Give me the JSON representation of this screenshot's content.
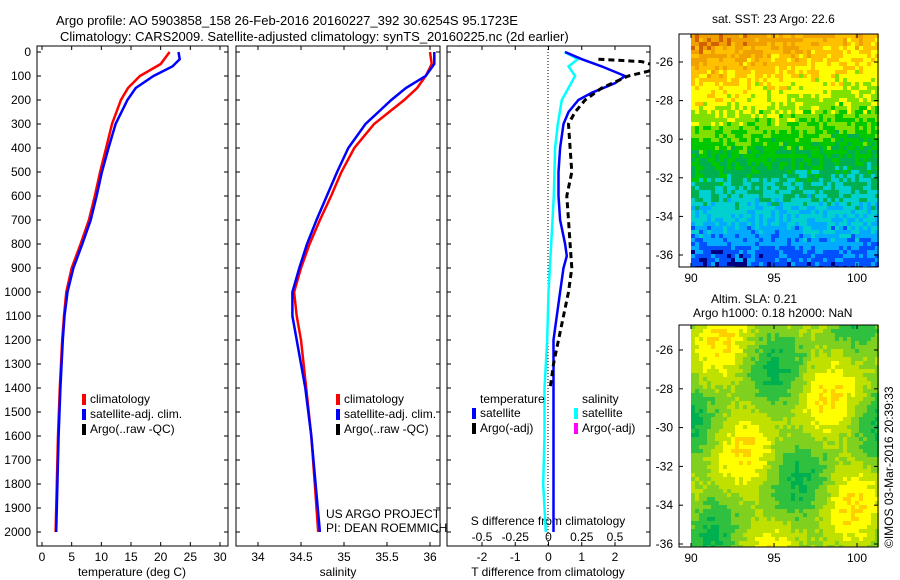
{
  "title_line1": "Argo profile: AO 5903858_158 26-Feb-2016 20160227_392 30.6254S 95.1723E",
  "title_line2": "Climatology: CARS2009. Satellite-adjusted climatology: synTS_20160225.nc (2d earlier)",
  "colors": {
    "climatology": "#ff0000",
    "satellite": "#0000ff",
    "argo": "#000000",
    "sal_sat": "#00ffff",
    "sal_argo": "#ff00ff"
  },
  "chart_data": [
    {
      "type": "line",
      "xlabel": "temperature (deg C)",
      "xlim": [
        -1,
        31
      ],
      "ylim": [
        0,
        2050
      ],
      "xticks": [
        "0",
        "5",
        "10",
        "15",
        "20",
        "25",
        "30"
      ],
      "yticks": [
        "0",
        "100",
        "200",
        "300",
        "400",
        "500",
        "600",
        "700",
        "800",
        "900",
        "1000",
        "1100",
        "1200",
        "1300",
        "1400",
        "1500",
        "1600",
        "1700",
        "1800",
        "1900",
        "2000"
      ],
      "legend": [
        "climatology",
        "satellite-adj. clim.",
        "Argo(..raw -QC)"
      ],
      "series": [
        {
          "name": "climatology",
          "depth": [
            0,
            50,
            100,
            150,
            200,
            300,
            400,
            500,
            600,
            700,
            800,
            900,
            1000,
            1100,
            1200,
            1400,
            1600,
            1800,
            2000
          ],
          "values": [
            21.5,
            20,
            16.5,
            14.5,
            13.3,
            11.8,
            10.8,
            9.8,
            8.9,
            7.9,
            6.5,
            5,
            4.1,
            3.7,
            3.4,
            3.0,
            2.7,
            2.5,
            2.3
          ]
        },
        {
          "name": "satellite-adj. clim.",
          "depth": [
            0,
            30,
            60,
            100,
            150,
            200,
            300,
            400,
            500,
            600,
            700,
            800,
            900,
            1000,
            1100,
            1200,
            1400,
            1600,
            1800,
            2000
          ],
          "values": [
            23,
            23.2,
            22,
            18.8,
            15.8,
            14.4,
            12.4,
            11.2,
            10.1,
            9.2,
            8.2,
            6.8,
            5.3,
            4.3,
            3.8,
            3.5,
            3.1,
            2.8,
            2.6,
            2.4
          ]
        }
      ]
    },
    {
      "type": "line",
      "xlabel": "salinity",
      "xlim": [
        33.8,
        36.1
      ],
      "ylim": [
        0,
        2050
      ],
      "xticks": [
        "34",
        "34.5",
        "35",
        "35.5",
        "36"
      ],
      "legend": [
        "climatology",
        "satellite-adj. clim.",
        "Argo(..raw -QC)"
      ],
      "annotation": [
        "US ARGO PROJECT",
        "PI: DEAN ROEMMICH"
      ],
      "series": [
        {
          "name": "climatology",
          "depth": [
            0,
            50,
            100,
            150,
            200,
            300,
            400,
            500,
            600,
            700,
            800,
            900,
            1000,
            1100,
            1200,
            1400,
            1600,
            1800,
            2000
          ],
          "values": [
            36.0,
            36.02,
            35.95,
            35.85,
            35.7,
            35.35,
            35.12,
            34.97,
            34.85,
            34.72,
            34.6,
            34.5,
            34.42,
            34.45,
            34.5,
            34.56,
            34.62,
            34.66,
            34.7
          ]
        },
        {
          "name": "satellite-adj. clim.",
          "depth": [
            0,
            50,
            100,
            150,
            200,
            300,
            400,
            500,
            600,
            700,
            800,
            900,
            1000,
            1100,
            1200,
            1400,
            1600,
            1800,
            2000
          ],
          "values": [
            36.05,
            36.05,
            35.95,
            35.72,
            35.55,
            35.25,
            35.05,
            34.92,
            34.8,
            34.68,
            34.57,
            34.48,
            34.4,
            34.4,
            34.45,
            34.55,
            34.62,
            34.67,
            34.72
          ]
        }
      ]
    },
    {
      "type": "line",
      "xlabel": "T difference from climatology",
      "x2label": "S difference from climatology",
      "xlim": [
        -3,
        3
      ],
      "x2lim": [
        -0.75,
        0.75
      ],
      "ylim": [
        0,
        2050
      ],
      "xticks": [
        "-2",
        "-1",
        "0",
        "1",
        "2"
      ],
      "x2ticks": [
        "-0.5",
        "-0.25",
        "0",
        "0.25",
        "0.5"
      ],
      "legend": {
        "temperature": "temperature",
        "salinity": "salinity",
        "t_sat": "satellite",
        "t_argo": "Argo(-adj)",
        "s_sat": "satellite",
        "s_argo": "Argo(-adj)"
      },
      "series": [
        {
          "name": "T satellite",
          "depth": [
            0,
            30,
            60,
            100,
            130,
            170,
            200,
            250,
            300,
            400,
            500,
            600,
            700,
            800,
            850,
            900,
            1000,
            1100,
            1200,
            1400,
            1600,
            1800,
            2000
          ],
          "values": [
            0.5,
            1.0,
            1.6,
            2.3,
            2.0,
            1.3,
            0.9,
            0.6,
            0.45,
            0.35,
            0.3,
            0.3,
            0.35,
            0.5,
            0.55,
            0.45,
            0.35,
            0.25,
            0.15,
            0.15,
            0.15,
            0.15,
            0.15
          ]
        },
        {
          "name": "T Argo",
          "depth": [
            30,
            40,
            60,
            80,
            100,
            150,
            200,
            250,
            300,
            400,
            500,
            600,
            700,
            800,
            900,
            1000,
            1100,
            1200,
            1300,
            1400
          ],
          "values": [
            1.5,
            2.8,
            3.3,
            3.0,
            2.4,
            1.6,
            1.1,
            0.8,
            0.6,
            0.65,
            0.7,
            0.55,
            0.6,
            0.65,
            0.7,
            0.6,
            0.45,
            0.3,
            0.15,
            0.05
          ]
        },
        {
          "name": "S satellite",
          "depth": [
            0,
            30,
            60,
            100,
            200,
            300,
            400,
            600,
            800,
            1000,
            1200,
            1400,
            1600,
            1800,
            2000
          ],
          "values": [
            0.12,
            0.22,
            0.15,
            0.2,
            0.1,
            0.07,
            0.05,
            0.04,
            0.02,
            0.0,
            -0.01,
            -0.03,
            -0.03,
            -0.04,
            -0.02
          ]
        }
      ]
    },
    {
      "type": "heatmap",
      "title": "sat. SST: 23 Argo: 22.6",
      "xticks": [
        "90",
        "95",
        "100"
      ],
      "yticks": [
        "-26",
        "-28",
        "-30",
        "-32",
        "-34",
        "-36"
      ]
    },
    {
      "type": "heatmap",
      "title": [
        "Altim. SLA: 0.21",
        "Argo h1000: 0.18 h2000: NaN"
      ],
      "xticks": [
        "90",
        "95",
        "100"
      ],
      "yticks": [
        "-26",
        "-28",
        "-30",
        "-32",
        "-34",
        "-36"
      ]
    }
  ],
  "credit": "©IMOS 03-Mar-2016 20:39:33"
}
